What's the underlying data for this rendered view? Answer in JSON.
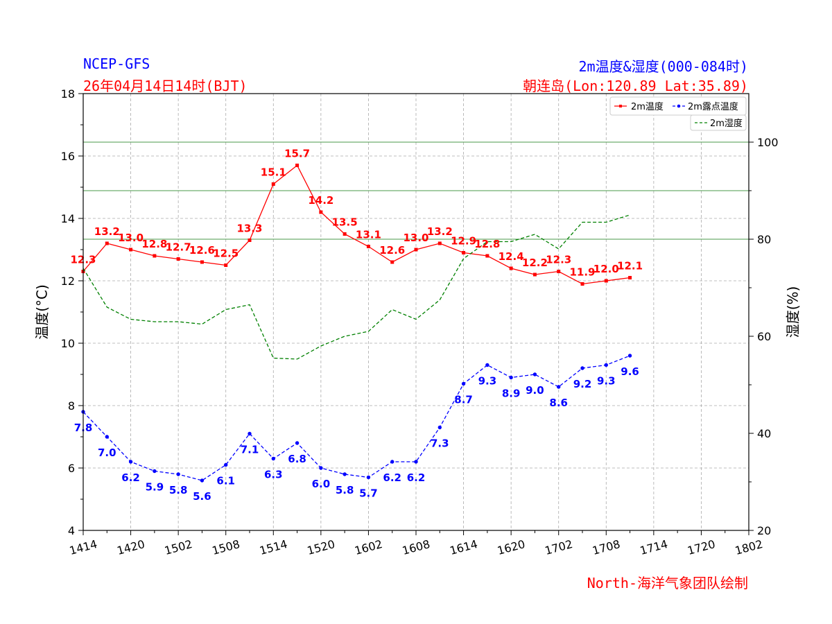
{
  "header": {
    "source": "NCEP-GFS",
    "init_time": "26年04月14日14时(BJT)",
    "title": "2m温度&湿度(000-084时)",
    "location": "朝连岛(Lon:120.89 Lat:35.89)",
    "credit": "North-海洋气象团队绘制"
  },
  "colors": {
    "temperature": "#ff0000",
    "dewpoint": "#0000ff",
    "humidity": "#008000",
    "grid": "#aaaaaa",
    "source_text": "#0000ff",
    "init_text": "#ff0000"
  },
  "chart_data": {
    "type": "line",
    "x_tick_labels": [
      "1414",
      "1420",
      "1502",
      "1508",
      "1514",
      "1520",
      "1602",
      "1608",
      "1614",
      "1620",
      "1702",
      "1708",
      "1714",
      "1720",
      "1802"
    ],
    "x_range_hours": [
      0,
      84
    ],
    "step_hours": 3,
    "ylabel_left": "温度(°C)",
    "ylabel_right": "湿度(%)",
    "y_left_range": [
      4,
      18
    ],
    "y_left_ticks": [
      "4",
      "6",
      "8",
      "10",
      "12",
      "14",
      "16",
      "18"
    ],
    "y_right_range": [
      20,
      110
    ],
    "y_right_ticks": [
      "20",
      "40",
      "60",
      "80",
      "100"
    ],
    "humidity_reference_lines": [
      80,
      90,
      100
    ],
    "grid": true,
    "legend_placement": "top-right",
    "series": [
      {
        "name": "2m温度",
        "axis": "left",
        "style": "solid",
        "values": [
          12.3,
          13.2,
          13.0,
          12.8,
          12.7,
          12.6,
          12.5,
          13.3,
          15.1,
          15.7,
          14.2,
          13.5,
          13.1,
          12.6,
          13.0,
          13.2,
          12.9,
          12.8,
          12.4,
          12.2,
          12.3,
          11.9,
          12.0,
          12.1
        ],
        "labels": [
          "12.3",
          "13.2",
          "13.0",
          "12.8",
          "12.7",
          "12.6",
          "12.5",
          "13.3",
          "15.1",
          "15.7",
          "14.2",
          "13.5",
          "13.1",
          "12.6",
          "13.0",
          "13.2",
          "12.9",
          "12.8",
          "12.4",
          "12.2",
          "12.3",
          "11.9",
          "12.0",
          "12.1"
        ]
      },
      {
        "name": "2m露点温度",
        "axis": "left",
        "style": "dashed",
        "values": [
          7.8,
          7.0,
          6.2,
          5.9,
          5.8,
          5.6,
          6.1,
          7.1,
          6.3,
          6.8,
          6.0,
          5.8,
          5.7,
          6.2,
          6.2,
          7.3,
          8.7,
          9.3,
          8.9,
          9.0,
          8.6,
          9.2,
          9.3,
          9.6
        ],
        "labels": [
          "7.8",
          "7.0",
          "6.2",
          "5.9",
          "5.8",
          "5.6",
          "6.1",
          "7.1",
          "6.3",
          "6.8",
          "6.0",
          "5.8",
          "5.7",
          "6.2",
          "6.2",
          "7.3",
          "8.7",
          "9.3",
          "8.9",
          "9.0",
          "8.6",
          "9.2",
          "9.3",
          "9.6"
        ]
      },
      {
        "name": "2m湿度",
        "axis": "right",
        "style": "dashed",
        "values": [
          74,
          66,
          63.5,
          63,
          63,
          62.5,
          65.5,
          66.5,
          55.5,
          55.3,
          58,
          60,
          61,
          65.5,
          63.5,
          67.5,
          76,
          79.5,
          79.5,
          81,
          78,
          83.5,
          83.5,
          85
        ]
      }
    ]
  }
}
